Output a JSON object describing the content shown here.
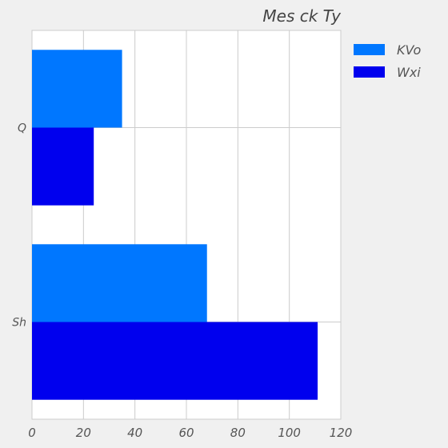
{
  "chart_data": {
    "type": "bar",
    "orientation": "horizontal",
    "title": "Mes ck  Ty",
    "categories": [
      "Q",
      "Sh"
    ],
    "series": [
      {
        "name": "KVo",
        "color": "#0077ff",
        "values": [
          35,
          68
        ]
      },
      {
        "name": "Wxi",
        "color": "#0000ee",
        "values": [
          24,
          111
        ]
      }
    ],
    "xlim": [
      0,
      120
    ],
    "xticks": [
      "0",
      "20",
      "40",
      "60",
      "80",
      "100",
      "120"
    ],
    "grid": true,
    "legend_position": "top-right",
    "xlabel": "",
    "ylabel": ""
  }
}
